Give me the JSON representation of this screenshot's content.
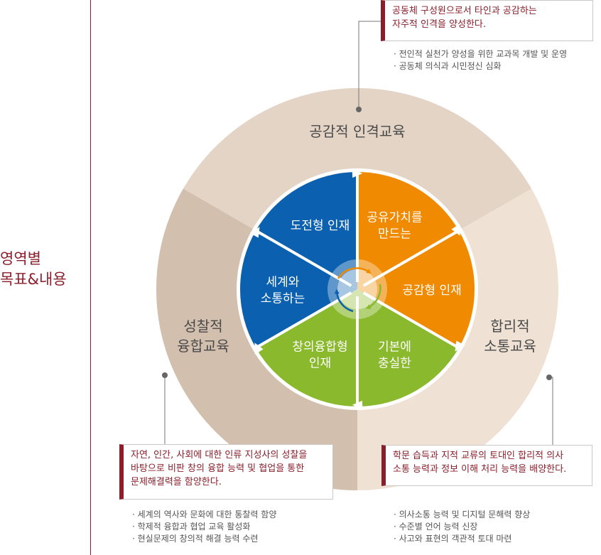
{
  "side_title": [
    "영역별",
    "목표&내용"
  ],
  "outer_areas": {
    "top": "공감적 인격교육",
    "left": [
      "성찰적",
      "융합교육"
    ],
    "right": [
      "합리적",
      "소통교육"
    ]
  },
  "inner_segments": [
    {
      "lines": [
        "공유가치를",
        "만드는"
      ],
      "color": "#f08a00"
    },
    {
      "lines": [
        "공감형 인재"
      ],
      "color": "#f08a00"
    },
    {
      "lines": [
        "기본에",
        "충실한"
      ],
      "color": "#8ab92d"
    },
    {
      "lines": [
        "창의융합형",
        "인재"
      ],
      "color": "#8ab92d"
    },
    {
      "lines": [
        "세계와",
        "소통하는"
      ],
      "color": "#0b60b0"
    },
    {
      "lines": [
        "도전형 인재"
      ],
      "color": "#0b60b0"
    }
  ],
  "colors": {
    "accent": "#8a1f2b",
    "outer_top": "#e3d4c5",
    "outer_left": "#d2bfae",
    "outer_right": "#efe2d4",
    "orange": "#f08a00",
    "green": "#8ab92d",
    "blue": "#0b60b0"
  },
  "goals": {
    "top": {
      "text": [
        "공동체 구성원으로서 타인과 공감하는",
        "자주적 인격을 양성한다."
      ],
      "bullets": [
        "전인적 실천가 양성을 위한 교과목 개발 및 운영",
        "공동체 의식과 시민정신 심화"
      ]
    },
    "left": {
      "text": [
        "자연, 인간, 사회에 대한 인류 지성사의 성찰을",
        "바탕으로 비판 창의 융합 능력 및 협업을 통한",
        "문제해결력을 함양한다."
      ],
      "bullets": [
        "세계의 역사와 문화에 대한 통찰력 함양",
        "학제적 융합과 협업 교육 활성화",
        "현실문제의 창의적 해결 능력 수련"
      ]
    },
    "right": {
      "text": [
        "학문 습득과 지적 교류의 토대인 합리적 의사",
        "소통 능력과 정보 이해 처리 능력을 배양한다."
      ],
      "bullets": [
        "의사소통 능력 및 디지털 문해력 향상",
        "수준별 언어 능력 신장",
        "사고와 표현의 객관적 토대 마련"
      ]
    }
  }
}
